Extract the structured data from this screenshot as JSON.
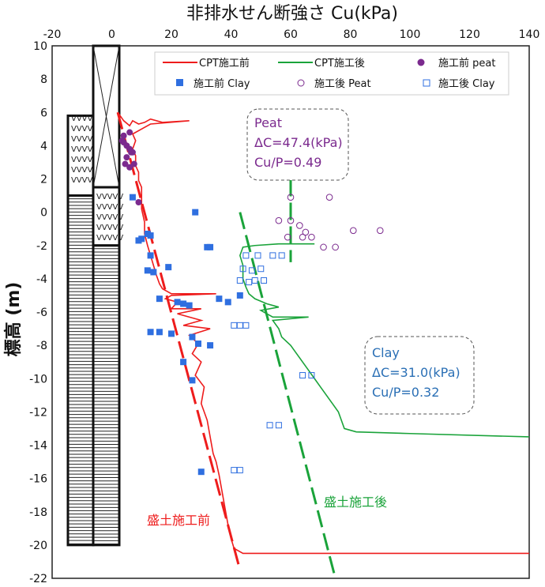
{
  "chart_data": {
    "type": "scatter",
    "title": "非排水せん断強さ Cu(kPa)",
    "ylabel": "標高 (m)",
    "xlim": [
      -20,
      140
    ],
    "ylim": [
      -22,
      10
    ],
    "x_ticks": [
      "-20",
      "0",
      "20",
      "40",
      "60",
      "80",
      "100",
      "120",
      "140"
    ],
    "y_ticks": [
      "10",
      "8",
      "6",
      "4",
      "2",
      "0",
      "-2",
      "-4",
      "-6",
      "-8",
      "-10",
      "-12",
      "-14",
      "-16",
      "-18",
      "-20",
      "-22"
    ],
    "legend": [
      "CPT施工前",
      "CPT施工後",
      "施工前 peat",
      "施工前 Clay",
      "施工後 Peat",
      "施工後 Clay"
    ],
    "colors": {
      "red": "#ee1c1c",
      "green": "#1aa33a",
      "purple": "#7b2a8e",
      "blue": "#2f6fe0",
      "clay_anno": "#2a6fb5"
    },
    "series": [
      {
        "name": "施工前 peat",
        "marker": "filled-circle",
        "points": [
          [
            4,
            4.6
          ],
          [
            3.5,
            4.3
          ],
          [
            6,
            4.8
          ],
          [
            4,
            4.2
          ],
          [
            5,
            4.0
          ],
          [
            6,
            3.8
          ],
          [
            7,
            3.6
          ],
          [
            5,
            3.3
          ],
          [
            6.5,
            3.6
          ],
          [
            4.5,
            2.9
          ],
          [
            6,
            2.7
          ],
          [
            7.5,
            2.9
          ],
          [
            9,
            0.6
          ]
        ]
      },
      {
        "name": "施工前 Clay",
        "marker": "filled-square",
        "points": [
          [
            7,
            0.9
          ],
          [
            10,
            -1.6
          ],
          [
            12,
            -1.3
          ],
          [
            13,
            -1.4
          ],
          [
            9,
            -1.7
          ],
          [
            13,
            -2.6
          ],
          [
            12,
            -3.5
          ],
          [
            14,
            -3.6
          ],
          [
            19,
            -3.3
          ],
          [
            28,
            0
          ],
          [
            32,
            -2.1
          ],
          [
            33,
            -2.1
          ],
          [
            16,
            -5.2
          ],
          [
            22,
            -5.4
          ],
          [
            24,
            -5.5
          ],
          [
            26,
            -5.6
          ],
          [
            36,
            -5.2
          ],
          [
            39,
            -5.4
          ],
          [
            43,
            -5.0
          ],
          [
            13,
            -7.2
          ],
          [
            16,
            -7.2
          ],
          [
            20,
            -7.3
          ],
          [
            27,
            -7.5
          ],
          [
            29,
            -7.9
          ],
          [
            33,
            -8
          ],
          [
            24,
            -9
          ],
          [
            27,
            -10.1
          ],
          [
            30,
            -15.6
          ]
        ]
      },
      {
        "name": "施工後 Peat",
        "marker": "open-circle",
        "points": [
          [
            60,
            0.9
          ],
          [
            73,
            0.9
          ],
          [
            56,
            -0.5
          ],
          [
            60,
            -0.5
          ],
          [
            63,
            -0.8
          ],
          [
            65,
            -1.2
          ],
          [
            59,
            -1.5
          ],
          [
            64,
            -1.5
          ],
          [
            67,
            -1.5
          ],
          [
            71,
            -2.1
          ],
          [
            75,
            -2.1
          ],
          [
            81,
            -1.1
          ],
          [
            90,
            -1.1
          ]
        ]
      },
      {
        "name": "施工後 Clay",
        "marker": "open-square",
        "points": [
          [
            45,
            -2.6
          ],
          [
            49,
            -2.6
          ],
          [
            54,
            -2.6
          ],
          [
            57,
            -2.6
          ],
          [
            44,
            -3.4
          ],
          [
            47,
            -3.5
          ],
          [
            50,
            -3.4
          ],
          [
            43,
            -4.1
          ],
          [
            46,
            -4.2
          ],
          [
            48,
            -4.1
          ],
          [
            51,
            -4.1
          ],
          [
            41,
            -6.8
          ],
          [
            43,
            -6.8
          ],
          [
            45,
            -6.8
          ],
          [
            64,
            -9.8
          ],
          [
            67,
            -9.8
          ],
          [
            53,
            -12.8
          ],
          [
            56,
            -12.8
          ],
          [
            41,
            -15.5
          ],
          [
            43,
            -15.5
          ]
        ]
      },
      {
        "name": "CPT施工前",
        "marker": "line",
        "points": [
          [
            2,
            6
          ],
          [
            4,
            5.5
          ],
          [
            6,
            5.2
          ],
          [
            7,
            5.5
          ],
          [
            9,
            5.3
          ],
          [
            11,
            5.4
          ],
          [
            13,
            5.6
          ],
          [
            17,
            5.4
          ],
          [
            26,
            5.5
          ],
          [
            13,
            5.3
          ],
          [
            10,
            5.0
          ],
          [
            7,
            4.7
          ],
          [
            8,
            4.3
          ],
          [
            7,
            3.8
          ],
          [
            8,
            3.4
          ],
          [
            8,
            2.8
          ],
          [
            9,
            2.4
          ],
          [
            9,
            1.9
          ],
          [
            10,
            1.5
          ],
          [
            10,
            0.8
          ],
          [
            10,
            0.2
          ],
          [
            11,
            -0.6
          ],
          [
            11,
            -1.3
          ],
          [
            12,
            -2
          ],
          [
            13,
            -2.6
          ],
          [
            14,
            -3.2
          ],
          [
            15,
            -3.8
          ],
          [
            16,
            -4.3
          ],
          [
            17,
            -4.6
          ],
          [
            20,
            -4.9
          ],
          [
            35,
            -4.9
          ],
          [
            20,
            -5.0
          ],
          [
            18,
            -5.2
          ],
          [
            22,
            -5.4
          ],
          [
            20,
            -5.8
          ],
          [
            30,
            -5.8
          ],
          [
            22,
            -6.1
          ],
          [
            30,
            -6.5
          ],
          [
            24,
            -6.8
          ],
          [
            33,
            -7.0
          ],
          [
            26,
            -7.4
          ],
          [
            29,
            -7.9
          ],
          [
            27,
            -8.5
          ],
          [
            30,
            -9
          ],
          [
            28,
            -9.8
          ],
          [
            31,
            -10.5
          ],
          [
            30,
            -11.5
          ],
          [
            32,
            -12.5
          ],
          [
            33,
            -13.5
          ],
          [
            34,
            -14.5
          ],
          [
            35,
            -15
          ],
          [
            36,
            -15.8
          ],
          [
            37,
            -16.8
          ],
          [
            38,
            -17.8
          ],
          [
            39,
            -18.8
          ],
          [
            40,
            -19.6
          ],
          [
            41,
            -20.2
          ],
          [
            44,
            -20.5
          ],
          [
            140,
            -20.5
          ]
        ]
      },
      {
        "name": "CPT施工後",
        "marker": "line",
        "points": [
          [
            60,
            -1.9
          ],
          [
            68,
            -1.9
          ],
          [
            56,
            -1.9
          ],
          [
            48,
            -2.0
          ],
          [
            44,
            -2.1
          ],
          [
            43,
            -2.6
          ],
          [
            44,
            -3.2
          ],
          [
            44,
            -4.0
          ],
          [
            45,
            -4.5
          ],
          [
            46,
            -4.9
          ],
          [
            48,
            -5.2
          ],
          [
            52,
            -5.5
          ],
          [
            56,
            -5.7
          ],
          [
            50,
            -5.9
          ],
          [
            54,
            -6.3
          ],
          [
            66,
            -6.3
          ],
          [
            54,
            -6.5
          ],
          [
            56,
            -7.0
          ],
          [
            57,
            -7.5
          ],
          [
            60,
            -8.0
          ],
          [
            62,
            -8.5
          ],
          [
            64,
            -9.0
          ],
          [
            66,
            -9.5
          ],
          [
            68,
            -10.0
          ],
          [
            70,
            -10.5
          ],
          [
            72,
            -11.0
          ],
          [
            74,
            -11.5
          ],
          [
            76,
            -12.0
          ],
          [
            77,
            -12.5
          ],
          [
            78,
            -13.0
          ],
          [
            82,
            -13.2
          ],
          [
            100,
            -13.3
          ],
          [
            140,
            -13.5
          ]
        ]
      }
    ],
    "trend_lines": [
      {
        "name": "盛土施工前",
        "color": "red",
        "points": [
          [
            2,
            6
          ],
          [
            43,
            -21.5
          ]
        ]
      },
      {
        "name": "盛土施工後",
        "color": "green",
        "points": [
          [
            43,
            0
          ],
          [
            75,
            -22
          ]
        ]
      },
      {
        "name": "Peat",
        "color": "green",
        "points": [
          [
            60,
            2
          ],
          [
            60,
            -3
          ]
        ]
      }
    ]
  },
  "annotations": {
    "peat": {
      "lines": [
        "Peat",
        "ΔC=47.4(kPa)",
        "Cu/P=0.49"
      ]
    },
    "clay": {
      "lines": [
        "Clay",
        "ΔC=31.0(kPa)",
        "Cu/P=0.32"
      ]
    },
    "before_label": "盛土施工前",
    "after_label": "盛土施工後"
  }
}
